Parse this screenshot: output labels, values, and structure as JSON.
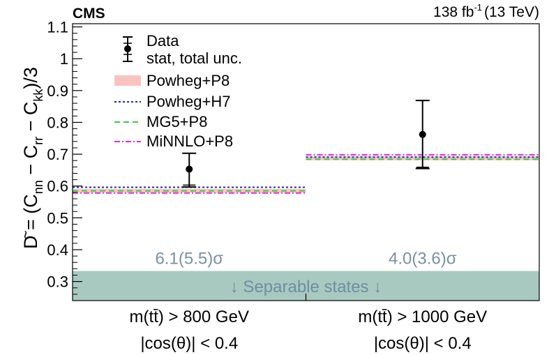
{
  "header": {
    "experiment": "CMS",
    "luminosity_prefix": "138 fb",
    "luminosity_exp": "-1",
    "energy": "(13 TeV)"
  },
  "chart_data": {
    "type": "scatter",
    "ylabel": {
      "tilde_D": "D",
      "eq": " = (C",
      "nn": "nn",
      "minus1": " − C",
      "rr": "rr",
      "minus2": " − C",
      "kk": "kk",
      "tail": ")/3"
    },
    "ylim": [
      0.24,
      1.11
    ],
    "yticks": [
      0.3,
      0.4,
      0.5,
      0.6,
      0.7,
      0.8,
      0.9,
      1.0,
      1.1
    ],
    "ytick_labels": [
      "0.3",
      "0.4",
      "0.5",
      "0.6",
      "0.7",
      "0.8",
      "0.9",
      "1",
      "1.1"
    ],
    "categories": [
      {
        "line1": "m(tt̄) > 800 GeV",
        "line2": "|cos(θ)| < 0.4"
      },
      {
        "line1": "m(tt̄) > 1000 GeV",
        "line2": "|cos(θ)| < 0.4"
      }
    ],
    "data": {
      "name": "Data",
      "values": [
        0.653,
        0.762
      ],
      "stat_low": [
        0.603,
        0.659
      ],
      "stat_high": [
        0.703,
        0.868
      ],
      "total_low": [
        0.597,
        0.655
      ],
      "total_high": [
        0.703,
        0.869
      ]
    },
    "predictions": [
      {
        "name": "Powheg+P8",
        "values": [
          0.585,
          0.687
        ],
        "band": 0.012,
        "color": "#f9c4c0",
        "style": "band"
      },
      {
        "name": "Powheg+H7",
        "values": [
          0.596,
          0.691
        ],
        "color": "#1f23c9",
        "style": "dotted"
      },
      {
        "name": "MG5+P8",
        "values": [
          0.585,
          0.684
        ],
        "color": "#3cc93c",
        "style": "dashed"
      },
      {
        "name": "MiNNLO+P8",
        "values": [
          0.578,
          0.698
        ],
        "color": "#e02be0",
        "style": "dashdot"
      }
    ],
    "significance": [
      "6.1(5.5)σ",
      "4.0(3.6)σ"
    ],
    "separable_region": {
      "label": "↓ Separable states ↓",
      "upper": 0.333,
      "color": "#a8c9c0"
    },
    "legend": {
      "placement": "top-left",
      "data_line1": "Data",
      "data_line2": "stat, total unc."
    },
    "grid": false
  }
}
